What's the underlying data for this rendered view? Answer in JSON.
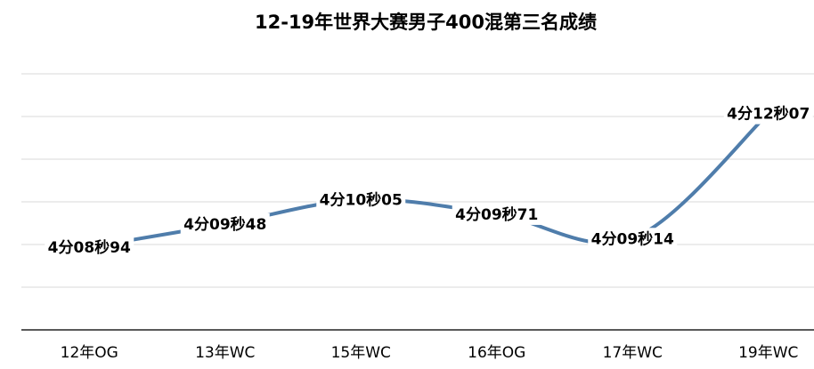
{
  "chart_data": {
    "type": "line",
    "title": "12-19年世界大赛男子400混第三名成绩",
    "categories": [
      "12年OG",
      "13年WC",
      "15年WC",
      "16年OG",
      "17年WC",
      "19年WC"
    ],
    "values": [
      248.94,
      249.48,
      250.05,
      249.71,
      249.14,
      252.07
    ],
    "value_labels": [
      "4分08秒94",
      "4分09秒48",
      "4分10秒05",
      "4分09秒71",
      "4分09秒14",
      "4分12秒07"
    ],
    "color": "#4f7dab",
    "ylim": [
      247,
      254
    ],
    "yticks": [
      247,
      248,
      249,
      250,
      251,
      252,
      253
    ],
    "grid": true,
    "smooth": true
  }
}
